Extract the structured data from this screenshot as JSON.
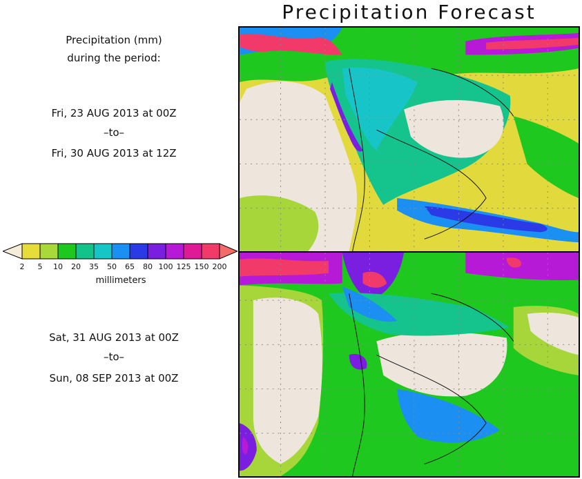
{
  "title": "Precipitation Forecast",
  "period_heading": [
    "Precipitation (mm)",
    "during the period:"
  ],
  "period1": {
    "start": "Fri, 23 AUG 2013 at 00Z",
    "sep": "–to–",
    "end": "Fri, 30 AUG 2013 at 12Z"
  },
  "period2": {
    "start": "Sat, 31 AUG 2013 at 00Z",
    "sep": "–to–",
    "end": "Sun, 08 SEP 2013 at 00Z"
  },
  "legend": {
    "unit": "millimeters",
    "ticks": [
      "2",
      "5",
      "10",
      "20",
      "35",
      "50",
      "65",
      "80",
      "100",
      "125",
      "150",
      "200"
    ],
    "colors": [
      "#f5ecd9",
      "#e6dc3a",
      "#a9d83a",
      "#1ec81e",
      "#12c48a",
      "#16c6c6",
      "#1c8ff2",
      "#2a3ae6",
      "#7a1fe0",
      "#b61ad6",
      "#e01a96",
      "#f23a6a",
      "#f26a6a"
    ]
  },
  "map_colors": {
    "bg_dry": "#eee6dc",
    "low": "#e2d93c",
    "light": "#a7d63b",
    "mid": "#1ec81e",
    "teal": "#14c48c",
    "cyan": "#17c4c8",
    "blue": "#1c8ff2",
    "dark_blue": "#2a3ae6",
    "purple": "#7a1fe0",
    "magenta": "#b61ad6",
    "pink": "#e01a96",
    "red": "#f23a6a"
  }
}
